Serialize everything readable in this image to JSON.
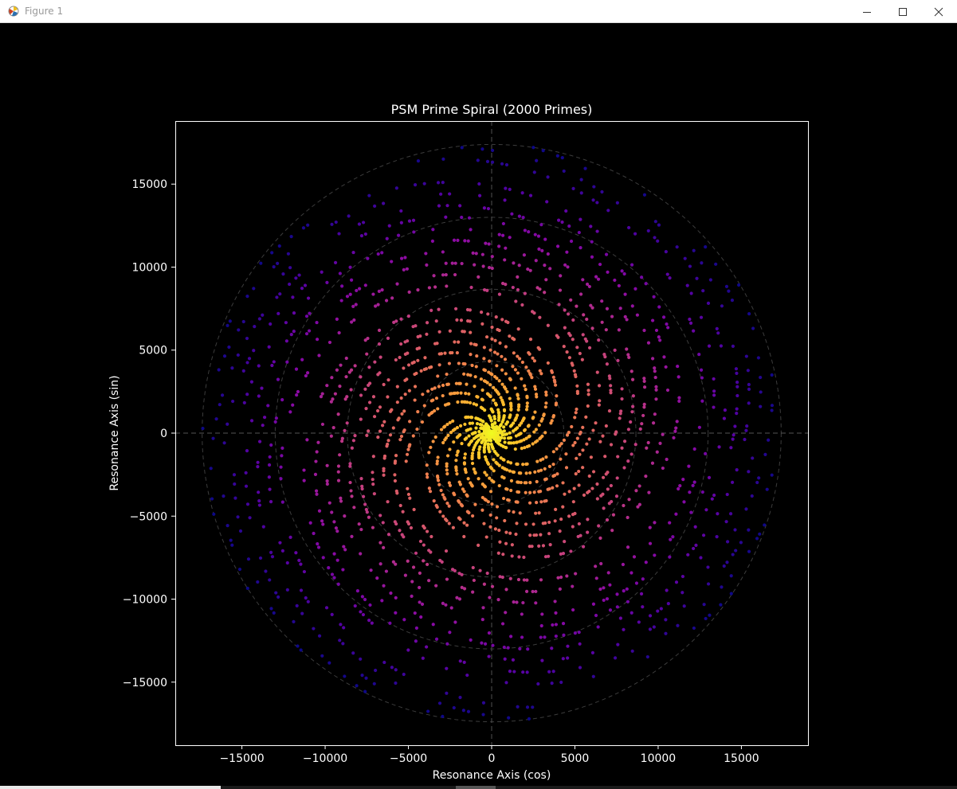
{
  "window": {
    "title": "Figure 1",
    "app_icon": "matplotlib-figure-icon",
    "controls": [
      "minimize-icon",
      "maximize-icon",
      "close-icon"
    ]
  },
  "colors": {
    "background": "#000000",
    "axes_edge": "#ffffff",
    "grid": "#555555",
    "colormap": "plasma"
  },
  "chart_data": {
    "type": "scatter",
    "title": "PSM Prime Spiral (2000 Primes)",
    "xlabel": "Resonance Axis (cos)",
    "ylabel": "Resonance Axis (sin)",
    "xlim": [
      -19000,
      19000
    ],
    "ylim": [
      -18800,
      18800
    ],
    "xticks": [
      -15000,
      -10000,
      -5000,
      0,
      5000,
      10000,
      15000
    ],
    "yticks": [
      -15000,
      -10000,
      -5000,
      0,
      5000,
      10000,
      15000
    ],
    "xtick_labels": [
      "−15000",
      "−10000",
      "−5000",
      "0",
      "5000",
      "10000",
      "15000"
    ],
    "ytick_labels": [
      "−15000",
      "−10000",
      "−5000",
      "0",
      "5000",
      "10000",
      "15000"
    ],
    "reference_circles_radius": [
      4333,
      8666,
      13000,
      17389
    ],
    "reference_lines": [
      "x = 0",
      "y = 0"
    ],
    "grid": false,
    "series": [
      {
        "n_points": 2000,
        "rule": "n-th prime p_n plotted at radius p_n and angle p_n radians (x = p·cos p, y = p·sin p)",
        "max_value": 17389,
        "color_by": "index (plasma, reversed: yellow at center to dark blue at edge)"
      }
    ]
  }
}
